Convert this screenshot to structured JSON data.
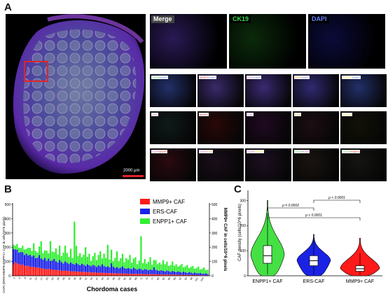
{
  "panel_a": {
    "letter": "A",
    "scale_bar": "2000 μm",
    "top_tiles": [
      {
        "label": "Merge",
        "label_color": "#ffffff",
        "label_bg": "#444444",
        "bg": "#2a1a55"
      },
      {
        "label": "CK19",
        "label_color": "#33dd44",
        "label_bg": "#000000",
        "bg": "#0b2a0b"
      },
      {
        "label": "DAPI",
        "label_color": "#6680ff",
        "label_bg": "#000000",
        "bg": "#0b0b3a"
      }
    ],
    "grid_rows": [
      {
        "bg": [
          "#23306a",
          "#3a2a6a",
          "#3a2a72",
          "#302a72",
          "#23306a"
        ],
        "labels": [
          [
            "CK19",
            "DAPI"
          ],
          [
            "MMP9",
            "DAPI"
          ],
          [
            "FAP",
            "DAPI"
          ],
          [
            "ERS",
            "DAPI"
          ],
          [
            "ENPP1",
            "DAPI"
          ]
        ]
      },
      {
        "bg": [
          "#101a1a",
          "#2a0808",
          "#200a22",
          "#1c0e14",
          "#121208"
        ],
        "labels": [
          [
            "FAP"
          ],
          [
            "MMP9"
          ],
          [
            "FAP"
          ],
          [
            "ERS"
          ],
          [
            "ENPP1"
          ]
        ]
      },
      {
        "bg": [
          "#2a0a10",
          "#1a0e1a",
          "#1c1020",
          "#1a1410",
          "#141412"
        ],
        "labels": [
          [
            "FAP",
            "MMP9"
          ],
          [
            "FAP",
            "ERS"
          ],
          [
            "FAP",
            "ENPP1"
          ],
          [
            "CK19",
            "FAP"
          ],
          [
            "CK19",
            "MMP9"
          ]
        ]
      }
    ],
    "label_colors": {
      "CK19": "#33dd44",
      "DAPI": "#6680ff",
      "MMP9": "#ff4444",
      "FAP": "#ff66ff",
      "ERS": "#ffaa33",
      "ENPP1": "#ffee44"
    }
  },
  "panel_b": {
    "letter": "B",
    "left_ylabel": "CAFs (ERS+MMP9+ENPP1+ CAF in cells/10^6 pixels)",
    "right_ylabel": "MMP9+ CAF in cells/10^6 pixels",
    "xlabel": "Chordoma cases",
    "x_ticks": [
      "2",
      "5",
      "8",
      "11",
      "14",
      "17",
      "20",
      "23",
      "26",
      "29",
      "32",
      "35",
      "38",
      "41",
      "44",
      "47",
      "50",
      "53",
      "56",
      "59",
      "62",
      "65",
      "68",
      "71",
      "74",
      "77",
      "80",
      "83",
      "86",
      "89",
      "92",
      "95",
      "98",
      "101",
      "104"
    ],
    "y_ticks": [
      "0",
      "100",
      "200",
      "300",
      "400",
      "500"
    ],
    "legend": [
      {
        "name": "MMP9+ CAF",
        "color": "#ff1a1a"
      },
      {
        "name": "ERS-CAF",
        "color": "#1a22e6"
      },
      {
        "name": "ENPP1+ CAF",
        "color": "#33ee33"
      }
    ]
  },
  "panel_c": {
    "letter": "C",
    "ylabel": "CAF density (cells/10^6 pixels)",
    "y_ticks": [
      "0",
      "100",
      "200",
      "300"
    ],
    "categories": [
      "ENPP1+ CAF",
      "ERS-CAF",
      "MMP9+ CAF"
    ],
    "colors": [
      "#44e044",
      "#1a22e6",
      "#ff1a1a"
    ],
    "p_values": [
      "p = 0.0002",
      "p < 0.0001",
      "p < 0.0001"
    ]
  },
  "chart_data": [
    {
      "type": "bar",
      "stacked": true,
      "xlabel": "Chordoma cases",
      "ylabel": "CAFs (ERS+MMP9+ENPP1+ CAF in cells/10^6 pixels)",
      "ylim": [
        0,
        500
      ],
      "n_cases": 106,
      "legend_position": "top-right",
      "series": [
        {
          "name": "MMP9+ CAF",
          "color": "#ff1a1a",
          "values": [
            78,
            95,
            88,
            82,
            75,
            80,
            70,
            68,
            72,
            65,
            60,
            63,
            58,
            55,
            60,
            52,
            50,
            48,
            46,
            50,
            45,
            42,
            44,
            40,
            38,
            41,
            36,
            35,
            37,
            34,
            33,
            32,
            30,
            31,
            30,
            29,
            28,
            27,
            28,
            26,
            25,
            26,
            24,
            23,
            24,
            22,
            22,
            21,
            21,
            20,
            20,
            19,
            19,
            18,
            18,
            18,
            17,
            17,
            16,
            16,
            16,
            15,
            15,
            15,
            14,
            14,
            14,
            13,
            13,
            13,
            12,
            12,
            12,
            12,
            11,
            11,
            11,
            10,
            10,
            10,
            10,
            9,
            9,
            9,
            9,
            8,
            8,
            8,
            8,
            7,
            7,
            7,
            7,
            6,
            6,
            6,
            6,
            5,
            5,
            5,
            5,
            4,
            4,
            4,
            3,
            3
          ]
        },
        {
          "name": "ERS-CAF",
          "color": "#1a22e6",
          "values": [
            110,
            90,
            95,
            80,
            92,
            85,
            76,
            88,
            70,
            82,
            75,
            80,
            66,
            72,
            85,
            70,
            64,
            78,
            60,
            70,
            58,
            66,
            74,
            62,
            56,
            70,
            60,
            52,
            64,
            58,
            50,
            62,
            55,
            48,
            60,
            52,
            46,
            58,
            50,
            44,
            56,
            48,
            42,
            54,
            47,
            40,
            52,
            45,
            60,
            50,
            42,
            48,
            40,
            70,
            46,
            38,
            44,
            36,
            42,
            50,
            38,
            34,
            40,
            36,
            32,
            44,
            36,
            30,
            38,
            34,
            28,
            36,
            32,
            26,
            34,
            30,
            48,
            32,
            28,
            24,
            30,
            26,
            22,
            28,
            24,
            20,
            26,
            22,
            18,
            24,
            20,
            16,
            22,
            18,
            14,
            20,
            16,
            12,
            18,
            14,
            12,
            16,
            12,
            10,
            14,
            10
          ]
        },
        {
          "name": "ENPP1+ CAF",
          "color": "#33ee33",
          "values": [
            30,
            25,
            40,
            35,
            28,
            45,
            38,
            32,
            55,
            48,
            40,
            85,
            50,
            36,
            60,
            120,
            45,
            52,
            70,
            38,
            140,
            62,
            48,
            90,
            55,
            100,
            42,
            75,
            110,
            68,
            50,
            95,
            40,
            300,
            120,
            58,
            85,
            45,
            70,
            130,
            52,
            80,
            38,
            60,
            90,
            48,
            72,
            105,
            40,
            85,
            62,
            150,
            55,
            95,
            40,
            70,
            110,
            50,
            65,
            88,
            42,
            75,
            58,
            95,
            45,
            62,
            80,
            38,
            55,
            230,
            48,
            70,
            42,
            60,
            85,
            36,
            52,
            68,
            44,
            58,
            40,
            75,
            50,
            62,
            36,
            48,
            66,
            40,
            55,
            34,
            45,
            60,
            30,
            42,
            56,
            28,
            40,
            52,
            26,
            36,
            48,
            24,
            34,
            44,
            22,
            30
          ]
        }
      ]
    },
    {
      "type": "violin",
      "ylabel": "CAF density (cells/10^6 pixels)",
      "ylim": [
        0,
        340
      ],
      "categories": [
        "ENPP1+ CAF",
        "ERS-CAF",
        "MMP9+ CAF"
      ],
      "box": [
        {
          "q1": 50,
          "median": 80,
          "q3": 120,
          "whisker_low": 5,
          "whisker_high": 250,
          "max": 300
        },
        {
          "q1": 40,
          "median": 60,
          "q3": 80,
          "whisker_low": 5,
          "whisker_high": 150,
          "max": 165
        },
        {
          "q1": 18,
          "median": 28,
          "q3": 40,
          "whisker_low": 2,
          "whisker_high": 90,
          "max": 150
        }
      ],
      "comparisons": [
        {
          "pair": [
            "ENPP1+ CAF",
            "ERS-CAF"
          ],
          "p": "p = 0.0002"
        },
        {
          "pair": [
            "ERS-CAF",
            "MMP9+ CAF"
          ],
          "p": "p < 0.0001"
        },
        {
          "pair": [
            "ENPP1+ CAF",
            "MMP9+ CAF"
          ],
          "p": "p < 0.0001"
        }
      ]
    }
  ]
}
